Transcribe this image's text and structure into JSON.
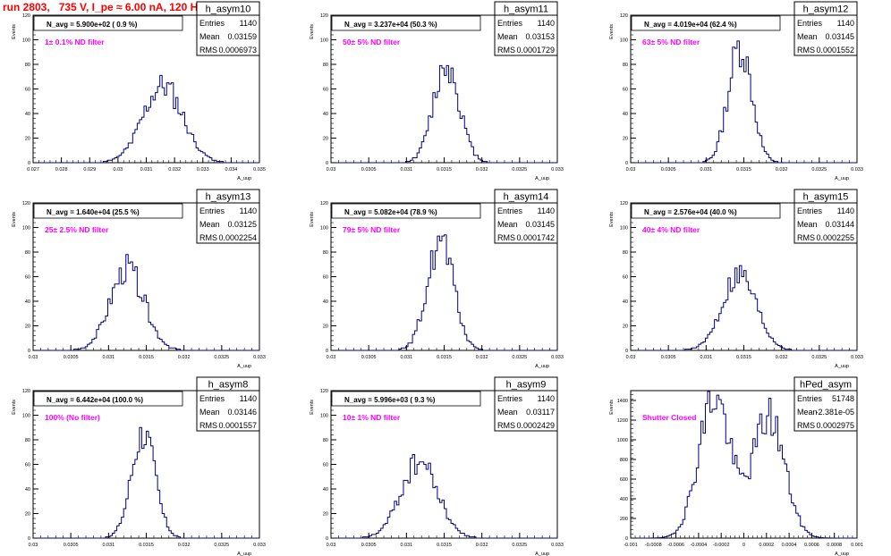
{
  "page_title": "run 2803,   735 V, I_pe ≈ 6.00 nA, 120 Hz",
  "colors": {
    "title": "#ff0000",
    "filter_label": "#ff00ff",
    "histogram": "#000080",
    "frame": "#000000"
  },
  "chart_data": [
    {
      "type": "bar",
      "name": "h_asym10",
      "entries": "1140",
      "mean": "0.03159",
      "rms": "0.0006973",
      "navg": "N_avg = 5.900e+02 ( 0.9 %)",
      "filter": "1± 0.1% ND filter",
      "ylabel": "Events",
      "xlabel": "A_uup",
      "xlim": [
        0.027,
        0.035
      ],
      "ylim": [
        0,
        120
      ],
      "xticks": [
        "0.027",
        "0.028",
        "0.029",
        "0.03",
        "0.031",
        "0.032",
        "0.033",
        "0.034",
        "0.035"
      ],
      "yticks": [
        "0",
        "20",
        "40",
        "60",
        "80",
        "100",
        "120"
      ],
      "mu": 0.03159,
      "sigma": 0.0006973,
      "peak": 63,
      "bins": 100,
      "seed": 11
    },
    {
      "type": "bar",
      "name": "h_asym11",
      "entries": "1140",
      "mean": "0.03153",
      "rms": "0.0001729",
      "navg": "N_avg = 3.237e+04 (50.3 %)",
      "filter": "50± 5% ND filter",
      "ylabel": "Events",
      "xlabel": "A_uup",
      "xlim": [
        0.03,
        0.033
      ],
      "ylim": [
        0,
        120
      ],
      "xticks": [
        "0.03",
        "0.0305",
        "0.031",
        "0.0315",
        "0.032",
        "0.0325",
        "0.033"
      ],
      "yticks": [
        "0",
        "20",
        "40",
        "60",
        "80",
        "100",
        "120"
      ],
      "mu": 0.03153,
      "sigma": 0.0001729,
      "peak": 80,
      "bins": 100,
      "seed": 12
    },
    {
      "type": "bar",
      "name": "h_asym12",
      "entries": "1140",
      "mean": "0.03145",
      "rms": "0.0001552",
      "navg": "N_avg = 4.019e+04 (62.4 %)",
      "filter": "63± 5% ND filter",
      "ylabel": "Events",
      "xlabel": "A_uup",
      "xlim": [
        0.03,
        0.033
      ],
      "ylim": [
        0,
        120
      ],
      "xticks": [
        "0.03",
        "0.0305",
        "0.031",
        "0.0315",
        "0.032",
        "0.0325",
        "0.033"
      ],
      "yticks": [
        "0",
        "20",
        "40",
        "60",
        "80",
        "100",
        "120"
      ],
      "mu": 0.03145,
      "sigma": 0.0001552,
      "peak": 95,
      "bins": 100,
      "seed": 13
    },
    {
      "type": "bar",
      "name": "h_asym13",
      "entries": "1140",
      "mean": "0.03125",
      "rms": "0.0002254",
      "navg": "N_avg = 1.640e+04 (25.5 %)",
      "filter": "25± 2.5% ND filter",
      "ylabel": "Events",
      "xlabel": "A_uup",
      "xlim": [
        0.03,
        0.033
      ],
      "ylim": [
        0,
        120
      ],
      "xticks": [
        "0.03",
        "0.0305",
        "0.031",
        "0.0315",
        "0.032",
        "0.0325",
        "0.033"
      ],
      "yticks": [
        "0",
        "20",
        "40",
        "60",
        "80",
        "100",
        "120"
      ],
      "mu": 0.03125,
      "sigma": 0.0002254,
      "peak": 66,
      "bins": 100,
      "seed": 14
    },
    {
      "type": "bar",
      "name": "h_asym14",
      "entries": "1140",
      "mean": "0.03145",
      "rms": "0.0001742",
      "navg": "N_avg = 5.082e+04 (78.9 %)",
      "filter": "79± 5% ND filter",
      "ylabel": "Events",
      "xlabel": "A_uup",
      "xlim": [
        0.03,
        0.033
      ],
      "ylim": [
        0,
        120
      ],
      "xticks": [
        "0.03",
        "0.0305",
        "0.031",
        "0.0315",
        "0.032",
        "0.0325",
        "0.033"
      ],
      "yticks": [
        "0",
        "20",
        "40",
        "60",
        "80",
        "100",
        "120"
      ],
      "mu": 0.03145,
      "sigma": 0.0001742,
      "peak": 88,
      "bins": 100,
      "seed": 15
    },
    {
      "type": "bar",
      "name": "h_asym15",
      "entries": "1140",
      "mean": "0.03144",
      "rms": "0.0002255",
      "navg": "N_avg = 2.576e+04 (40.0 %)",
      "filter": "40± 4% ND filter",
      "ylabel": "Events",
      "xlabel": "A_uup",
      "xlim": [
        0.03,
        0.033
      ],
      "ylim": [
        0,
        120
      ],
      "xticks": [
        "0.03",
        "0.0305",
        "0.031",
        "0.0315",
        "0.032",
        "0.0325",
        "0.033"
      ],
      "yticks": [
        "0",
        "20",
        "40",
        "60",
        "80",
        "100",
        "120"
      ],
      "mu": 0.03144,
      "sigma": 0.0002255,
      "peak": 62,
      "bins": 100,
      "seed": 16
    },
    {
      "type": "bar",
      "name": "h_asym8",
      "entries": "1140",
      "mean": "0.03146",
      "rms": "0.0001557",
      "navg": "N_avg = 6.442e+04 (100.0 %)",
      "filter": "100% (No filter)",
      "ylabel": "Events",
      "xlabel": "A_uup",
      "xlim": [
        0.03,
        0.033
      ],
      "ylim": [
        0,
        120
      ],
      "xticks": [
        "0.03",
        "0.0305",
        "0.031",
        "0.0315",
        "0.032",
        "0.0325",
        "0.033"
      ],
      "yticks": [
        "0",
        "20",
        "40",
        "60",
        "80",
        "100",
        "120"
      ],
      "mu": 0.03146,
      "sigma": 0.0001557,
      "peak": 86,
      "bins": 100,
      "seed": 17
    },
    {
      "type": "bar",
      "name": "h_asym9",
      "entries": "1140",
      "mean": "0.03117",
      "rms": "0.0002429",
      "navg": "N_avg = 5.996e+03 ( 9.3 %)",
      "filter": "10± 1% ND filter",
      "ylabel": "Events",
      "xlabel": "A_uup",
      "xlim": [
        0.03,
        0.033
      ],
      "ylim": [
        0,
        120
      ],
      "xticks": [
        "0.03",
        "0.0305",
        "0.031",
        "0.0315",
        "0.032",
        "0.0325",
        "0.033"
      ],
      "yticks": [
        "0",
        "20",
        "40",
        "60",
        "80",
        "100",
        "120"
      ],
      "mu": 0.03117,
      "sigma": 0.0002429,
      "peak": 62,
      "bins": 100,
      "seed": 18
    },
    {
      "type": "bar",
      "name": "hPed_asym",
      "entries": "51748",
      "mean": "-2.381e-05",
      "rms": "0.0002975",
      "navg": "",
      "filter": "Shutter Closed",
      "ylabel": "Events",
      "xlabel": "A_uup",
      "xlim": [
        -0.001,
        0.001
      ],
      "ylim": [
        0,
        1500
      ],
      "xticks": [
        "-0.001",
        "-0.0008",
        "-0.0006",
        "-0.0004",
        "-0.0002",
        "0",
        "0.0002",
        "0.0004",
        "0.0006",
        "0.0008",
        "0.001"
      ],
      "yticks": [
        "0",
        "200",
        "400",
        "600",
        "800",
        "1000",
        "1200",
        "1400"
      ],
      "bimodal": true,
      "mu1": -0.00026,
      "mu2": 0.00022,
      "sigma": 0.00014,
      "peak1": 1440,
      "peak2": 1240,
      "bins": 100,
      "seed": 19
    }
  ]
}
